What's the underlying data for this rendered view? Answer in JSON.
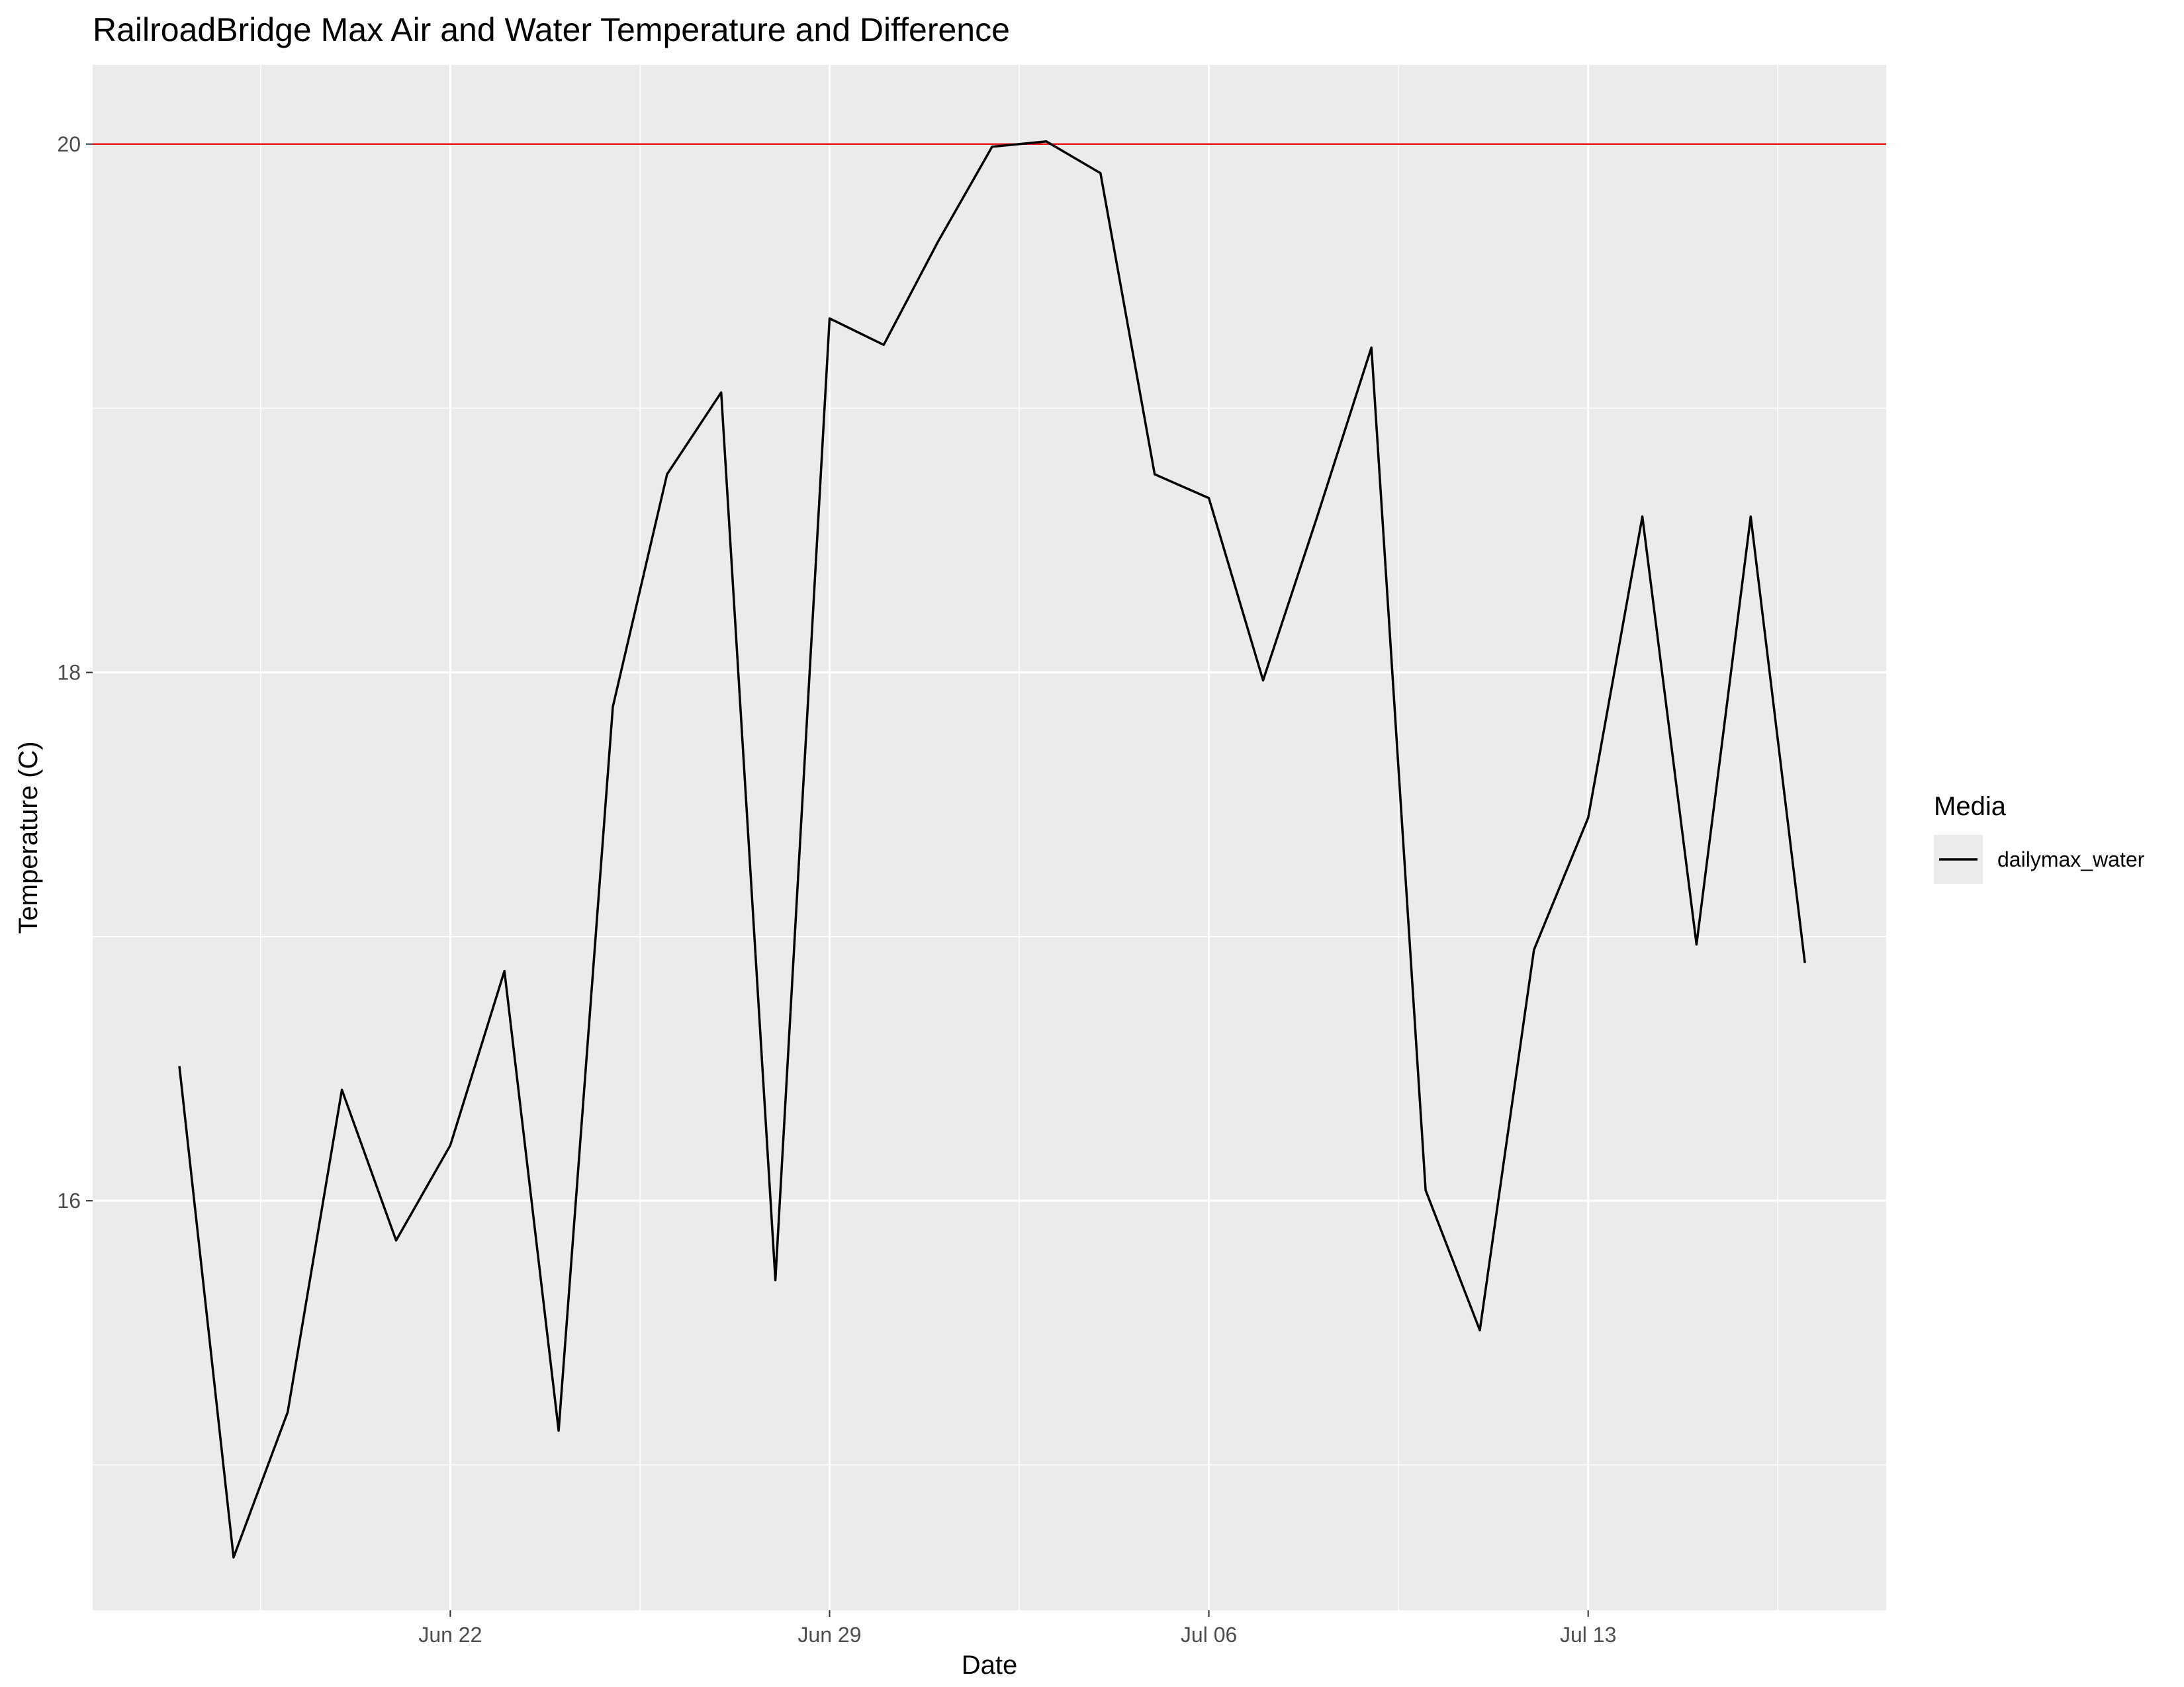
{
  "chart_data": {
    "type": "line",
    "title": "RailroadBridge Max Air and Water Temperature and Difference",
    "xlabel": "Date",
    "ylabel": "Temperature (C)",
    "x_tick_labels": [
      "Jun 22",
      "Jun 29",
      "Jul 06",
      "Jul 13"
    ],
    "y_tick_labels": [
      "16",
      "18",
      "20"
    ],
    "ylim": [
      14.45,
      20.3
    ],
    "xlim": [
      "2022-06-15T09:36",
      "2022-07-18T12:00"
    ],
    "grid": true,
    "legend": {
      "title": "Media",
      "position": "right",
      "entries": [
        "dailymax_water"
      ]
    },
    "reference_line": {
      "y": 20,
      "color": "#e41a1c"
    },
    "series": [
      {
        "name": "dailymax_water",
        "color": "#000000",
        "x": [
          "2022-06-17",
          "2022-06-18",
          "2022-06-19",
          "2022-06-20",
          "2022-06-21",
          "2022-06-22",
          "2022-06-23",
          "2022-06-24",
          "2022-06-25",
          "2022-06-26",
          "2022-06-27",
          "2022-06-28",
          "2022-06-29",
          "2022-06-30",
          "2022-07-01",
          "2022-07-02",
          "2022-07-03",
          "2022-07-04",
          "2022-07-05",
          "2022-07-06",
          "2022-07-07",
          "2022-07-08",
          "2022-07-09",
          "2022-07-10",
          "2022-07-11",
          "2022-07-12",
          "2022-07-13",
          "2022-07-14",
          "2022-07-15",
          "2022-07-16",
          "2022-07-17"
        ],
        "values": [
          16.51,
          14.65,
          15.2,
          16.42,
          15.85,
          16.21,
          16.87,
          15.13,
          17.87,
          18.75,
          19.06,
          15.7,
          19.34,
          19.24,
          19.63,
          19.99,
          20.01,
          19.89,
          18.75,
          18.66,
          17.97,
          18.59,
          19.23,
          16.04,
          15.51,
          16.95,
          17.45,
          18.59,
          16.97,
          18.59,
          16.9
        ]
      }
    ]
  }
}
